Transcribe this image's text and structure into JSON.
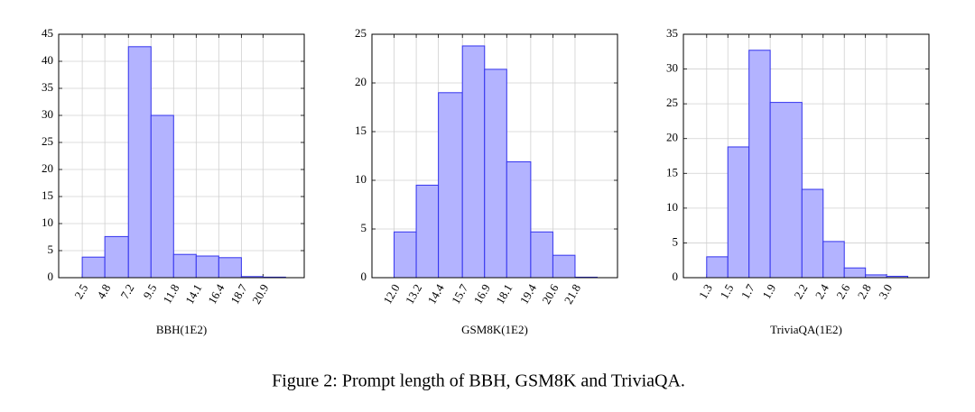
{
  "chart_data": [
    {
      "type": "histogram",
      "xlabel": "BBH(1E2)",
      "bins": [
        2.5,
        4.8,
        7.2,
        9.5,
        11.8,
        14.1,
        16.4,
        18.7,
        20.9,
        23.2
      ],
      "values": [
        3.8,
        7.6,
        42.7,
        30,
        4.3,
        4,
        3.7,
        0.2,
        0.1
      ],
      "color": "#b3b3ff",
      "edgecolor": "#3333ee",
      "xlim": [
        0.1,
        25.1
      ],
      "xticks": [
        2.5,
        4.8,
        7.2,
        9.5,
        11.8,
        14.1,
        16.4,
        18.7,
        20.9
      ],
      "ylim": [
        0,
        45
      ],
      "yticks": [
        0,
        5,
        10,
        15,
        20,
        25,
        30,
        35,
        40,
        45
      ],
      "grid": true
    },
    {
      "type": "histogram",
      "xlabel": "GSM8K(1E2)",
      "bins": [
        12.0,
        13.2,
        14.4,
        15.7,
        16.9,
        18.1,
        19.4,
        20.6,
        21.8,
        23.0
      ],
      "values": [
        4.7,
        9.5,
        19,
        23.8,
        21.4,
        11.9,
        4.7,
        2.3,
        0.05
      ],
      "color": "#b3b3ff",
      "edgecolor": "#3333ee",
      "xlim": [
        10.8,
        24.1
      ],
      "xticks": [
        {
          "value": 12,
          "label": "12.0"
        },
        13.2,
        14.4,
        15.7,
        16.9,
        18.1,
        19.4,
        20.6,
        21.8
      ],
      "ylim": [
        0,
        25
      ],
      "yticks": [
        0,
        5,
        10,
        15,
        20,
        25
      ],
      "grid": true
    },
    {
      "type": "histogram",
      "xlabel": "TriviaQA(1E2)",
      "bins": [
        1.3,
        1.5,
        1.7,
        1.9,
        2.2,
        2.4,
        2.6,
        2.8,
        3.0,
        3.2
      ],
      "values": [
        3,
        18.8,
        32.7,
        25.2,
        12.7,
        5.2,
        1.4,
        0.4,
        0.2
      ],
      "color": "#b3b3ff",
      "edgecolor": "#3333ee",
      "xlim": [
        1.08,
        3.4
      ],
      "xticks": [
        1.3,
        1.5,
        1.7,
        1.9,
        2.2,
        2.4,
        2.6,
        2.8,
        {
          "value": 3,
          "label": "3.0"
        }
      ],
      "ylim": [
        0,
        35
      ],
      "yticks": [
        0,
        5,
        10,
        15,
        20,
        25,
        30,
        35
      ],
      "grid": true
    }
  ],
  "caption": "Figure 2: Prompt length of BBH, GSM8K and TriviaQA."
}
